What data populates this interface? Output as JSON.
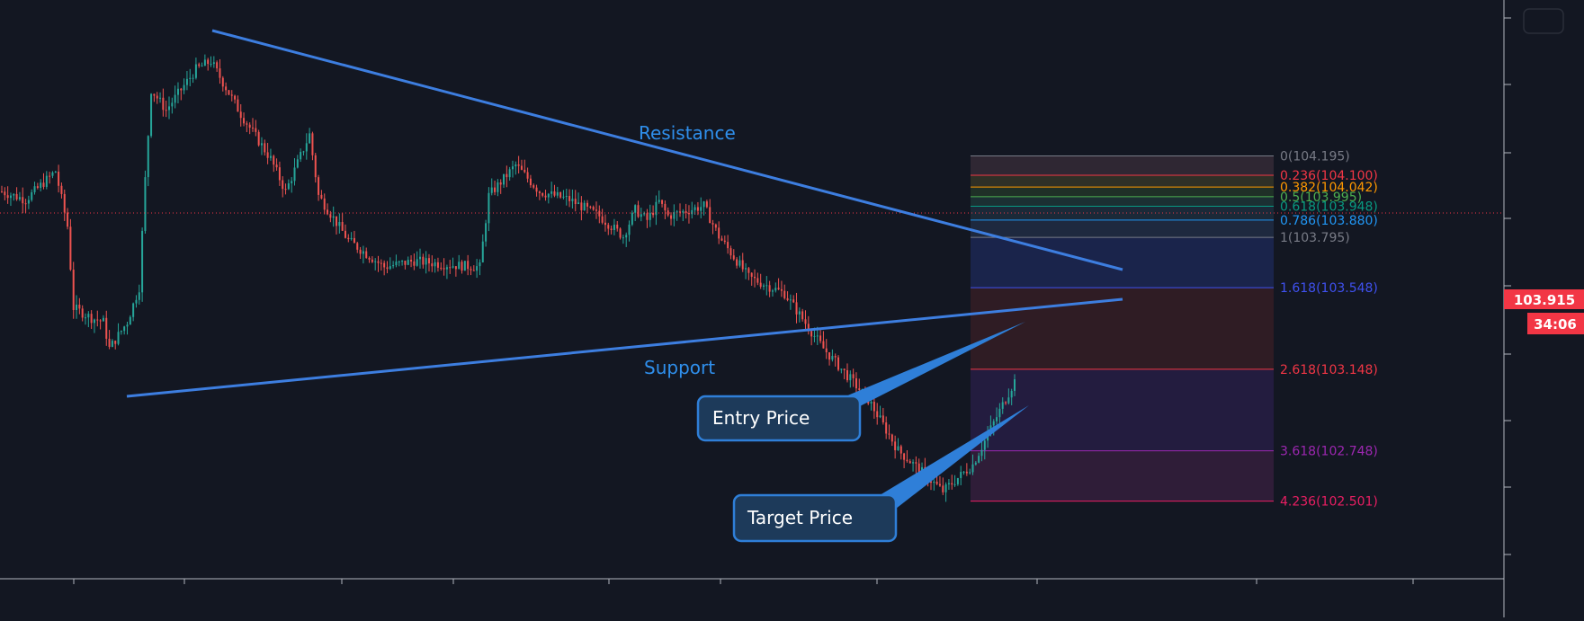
{
  "chart_data": {
    "type": "candlestick",
    "instrument_last_price": "103.915",
    "countdown": "34:06",
    "colors": {
      "background": "#131722",
      "up": "#26a69a",
      "down": "#ef5350",
      "trendline": "#3d7ee0",
      "trend_label": "#2f8fec",
      "price_badge": "#f23645",
      "callout_fill": "#1d3a5a",
      "callout_stroke": "#2f7fd8"
    },
    "ylim": [
      102.12,
      104.96
    ],
    "candle_count": 340,
    "candle_anchors": [
      [
        0,
        104.02
      ],
      [
        8,
        103.98
      ],
      [
        18,
        104.12
      ],
      [
        22,
        103.85
      ],
      [
        24,
        103.45
      ],
      [
        30,
        103.4
      ],
      [
        34,
        103.38
      ],
      [
        36,
        103.25
      ],
      [
        42,
        103.38
      ],
      [
        46,
        103.55
      ],
      [
        48,
        104.08
      ],
      [
        50,
        104.52
      ],
      [
        55,
        104.42
      ],
      [
        65,
        104.62
      ],
      [
        70,
        104.66
      ],
      [
        80,
        104.4
      ],
      [
        90,
        104.18
      ],
      [
        95,
        104.02
      ],
      [
        103,
        104.3
      ],
      [
        106,
        104.0
      ],
      [
        116,
        103.78
      ],
      [
        128,
        103.65
      ],
      [
        138,
        103.68
      ],
      [
        150,
        103.66
      ],
      [
        160,
        103.65
      ],
      [
        163,
        104.0
      ],
      [
        172,
        104.15
      ],
      [
        180,
        104.02
      ],
      [
        190,
        103.98
      ],
      [
        200,
        103.9
      ],
      [
        208,
        103.8
      ],
      [
        212,
        103.93
      ],
      [
        216,
        103.88
      ],
      [
        220,
        103.97
      ],
      [
        223,
        103.9
      ],
      [
        235,
        103.95
      ],
      [
        240,
        103.8
      ],
      [
        250,
        103.6
      ],
      [
        262,
        103.52
      ],
      [
        275,
        103.25
      ],
      [
        290,
        103.0
      ],
      [
        300,
        102.75
      ],
      [
        315,
        102.55
      ],
      [
        325,
        102.68
      ],
      [
        340,
        103.12
      ]
    ],
    "annotations": {
      "resistance_label": "Resistance",
      "support_label": "Support",
      "entry_label": "Entry Price",
      "target_label": "Target Price"
    },
    "fib_levels": [
      {
        "label": "0(104.195)",
        "ratio": 0,
        "price": 104.195,
        "color": "#787b86"
      },
      {
        "label": "0.236(104.100)",
        "ratio": 0.236,
        "price": 104.1,
        "color": "#f23645"
      },
      {
        "label": "0.382(104.042)",
        "ratio": 0.382,
        "price": 104.042,
        "color": "#ff9800"
      },
      {
        "label": "0.5(103.995)",
        "ratio": 0.5,
        "price": 103.995,
        "color": "#4caf50"
      },
      {
        "label": "0.618(103.948)",
        "ratio": 0.618,
        "price": 103.948,
        "color": "#089981"
      },
      {
        "label": "0.786(103.880)",
        "ratio": 0.786,
        "price": 103.88,
        "color": "#2196f3"
      },
      {
        "label": "1(103.795)",
        "ratio": 1,
        "price": 103.795,
        "color": "#787b86"
      },
      {
        "label": "1.618(103.548)",
        "ratio": 1.618,
        "price": 103.548,
        "color": "#3f51f0"
      },
      {
        "label": "2.618(103.148)",
        "ratio": 2.618,
        "price": 103.148,
        "color": "#f23645"
      },
      {
        "label": "3.618(102.748)",
        "ratio": 3.618,
        "price": 102.748,
        "color": "#9c27b0"
      },
      {
        "label": "4.236(102.501)",
        "ratio": 4.236,
        "price": 102.501,
        "color": "#e91e63"
      }
    ],
    "fib_zone_colors": [
      "#3a2d3a",
      "#3a3a2a",
      "#243a2a",
      "#1f3a3a",
      "#1f3040",
      "#23304a",
      "#1d2a5a",
      "#3a1f25",
      "#2a1f4a",
      "#3a2040"
    ]
  }
}
